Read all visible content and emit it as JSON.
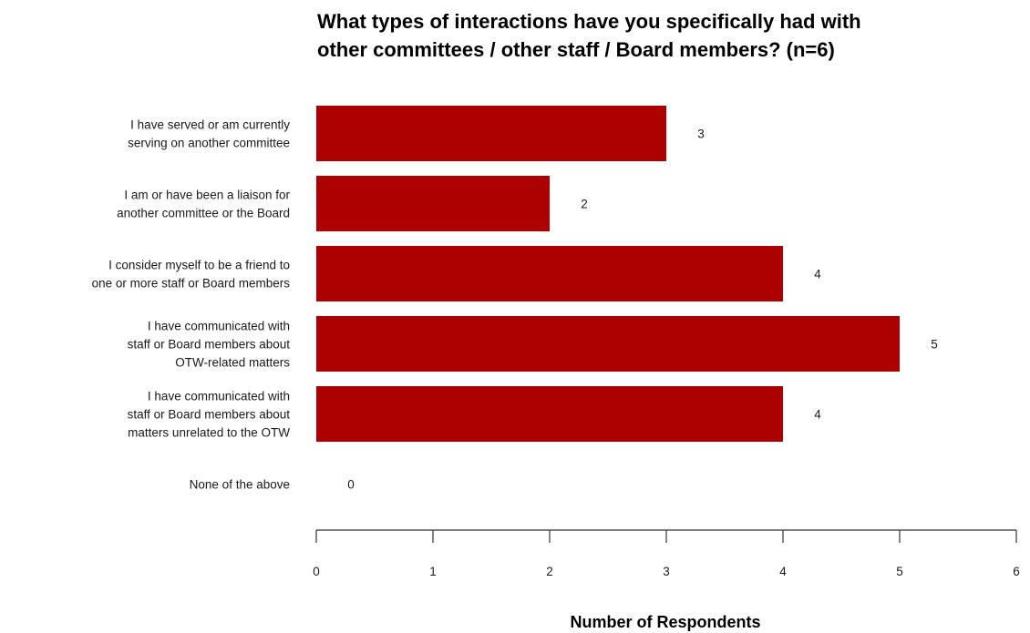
{
  "chart_data": {
    "type": "bar",
    "orientation": "horizontal",
    "title_lines": [
      "What types of interactions have you specifically had with",
      "other committees / other staff / Board members? (n=6)"
    ],
    "categories": [
      [
        "I have served or am currently",
        "serving on another committee"
      ],
      [
        "I am or have been a liaison for",
        "another committee or the Board"
      ],
      [
        "I consider myself to be a friend to",
        "one or more staff or Board members"
      ],
      [
        "I have communicated with",
        "staff or Board members about",
        "OTW-related matters"
      ],
      [
        "I have communicated with",
        "staff or Board members about",
        "matters unrelated to the OTW"
      ],
      [
        "None of the above"
      ]
    ],
    "values": [
      3,
      2,
      4,
      5,
      4,
      0
    ],
    "value_labels": [
      "3",
      "2",
      "4",
      "5",
      "4",
      "0"
    ],
    "xlabel": "Number of Respondents",
    "ylabel": "",
    "xlim": [
      0,
      6
    ],
    "xticks": [
      0,
      1,
      2,
      3,
      4,
      5,
      6
    ],
    "xtick_labels": [
      "0",
      "1",
      "2",
      "3",
      "4",
      "5",
      "6"
    ],
    "bar_color": "#ad0000",
    "grid": false,
    "legend": "none"
  }
}
